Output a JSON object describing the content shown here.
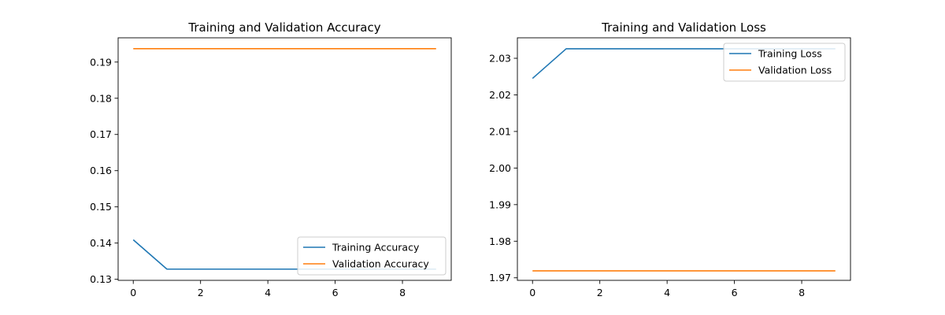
{
  "chart_data": [
    {
      "type": "line",
      "title": "Training and Validation Accuracy",
      "xlabel": "",
      "ylabel": "",
      "xlim": [
        -0.45,
        9.45
      ],
      "ylim": [
        0.1297,
        0.1967
      ],
      "x_ticks": [
        0,
        2,
        4,
        6,
        8
      ],
      "y_ticks": [
        0.13,
        0.14,
        0.15,
        0.16,
        0.17,
        0.18,
        0.19
      ],
      "x_tick_labels": [
        "0",
        "2",
        "4",
        "6",
        "8"
      ],
      "y_tick_labels": [
        "0.13",
        "0.14",
        "0.15",
        "0.16",
        "0.17",
        "0.18",
        "0.19"
      ],
      "grid": false,
      "legend": "lower right",
      "x": [
        0,
        1,
        2,
        3,
        4,
        5,
        6,
        7,
        8,
        9
      ],
      "series": [
        {
          "name": "Training Accuracy",
          "color": "#1f77b4",
          "values": [
            0.1409,
            0.1328,
            0.1328,
            0.1328,
            0.1328,
            0.1328,
            0.1328,
            0.1328,
            0.1328,
            0.1328
          ]
        },
        {
          "name": "Validation Accuracy",
          "color": "#ff7f0e",
          "values": [
            0.1937,
            0.1937,
            0.1937,
            0.1937,
            0.1937,
            0.1937,
            0.1937,
            0.1937,
            0.1937,
            0.1937
          ]
        }
      ]
    },
    {
      "type": "line",
      "title": "Training and Validation Loss",
      "xlabel": "",
      "ylabel": "",
      "xlim": [
        -0.45,
        9.45
      ],
      "ylim": [
        1.9693,
        2.0356
      ],
      "x_ticks": [
        0,
        2,
        4,
        6,
        8
      ],
      "y_ticks": [
        1.97,
        1.98,
        1.99,
        2.0,
        2.01,
        2.02,
        2.03
      ],
      "x_tick_labels": [
        "0",
        "2",
        "4",
        "6",
        "8"
      ],
      "y_tick_labels": [
        "1.97",
        "1.98",
        "1.99",
        "2.00",
        "2.01",
        "2.02",
        "2.03"
      ],
      "grid": false,
      "legend": "upper right",
      "x": [
        0,
        1,
        2,
        3,
        4,
        5,
        6,
        7,
        8,
        9
      ],
      "series": [
        {
          "name": "Training Loss",
          "color": "#1f77b4",
          "values": [
            2.0245,
            2.0326,
            2.0326,
            2.0326,
            2.0326,
            2.0326,
            2.0326,
            2.0326,
            2.0326,
            2.0326
          ]
        },
        {
          "name": "Validation Loss",
          "color": "#ff7f0e",
          "values": [
            1.9719,
            1.9719,
            1.9719,
            1.9719,
            1.9719,
            1.9719,
            1.9719,
            1.9719,
            1.9719,
            1.9719
          ]
        }
      ]
    }
  ]
}
